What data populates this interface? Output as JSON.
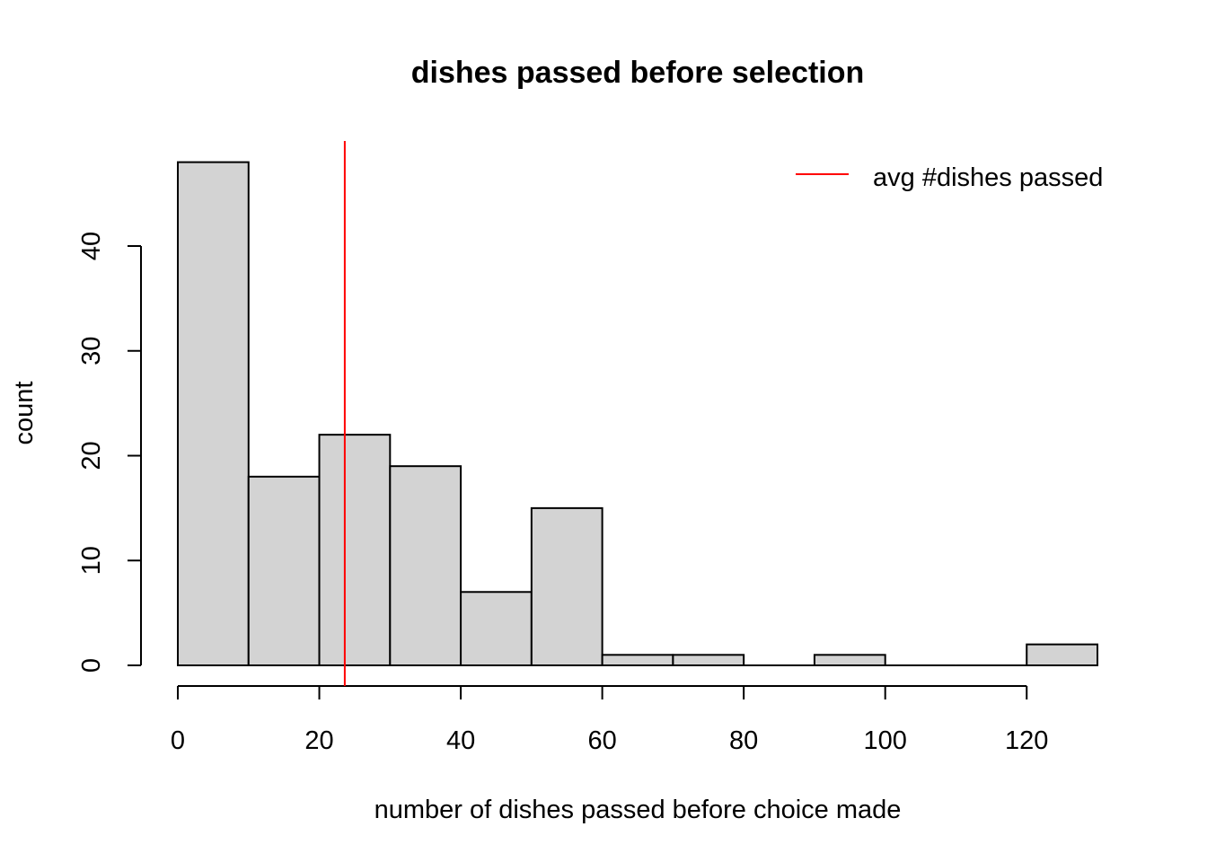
{
  "chart_data": {
    "type": "bar",
    "title": "dishes passed before selection",
    "xlabel": "number of dishes passed before choice made",
    "ylabel": "count",
    "bin_edges": [
      0,
      10,
      20,
      30,
      40,
      50,
      60,
      70,
      80,
      90,
      100,
      110,
      120,
      130
    ],
    "values": [
      48,
      18,
      22,
      19,
      7,
      15,
      1,
      1,
      0,
      1,
      0,
      0,
      2
    ],
    "x_ticks": [
      0,
      20,
      40,
      60,
      80,
      100,
      120
    ],
    "y_ticks": [
      0,
      10,
      20,
      30,
      40
    ],
    "xlim": [
      0,
      130
    ],
    "ylim": [
      0,
      50
    ],
    "vline": {
      "x": 23.6,
      "color": "#ff0000"
    },
    "legend": {
      "label": "avg #dishes passed",
      "color": "#ff0000",
      "position": "top-right"
    },
    "bar_color": "#d3d3d3",
    "grid": false
  }
}
